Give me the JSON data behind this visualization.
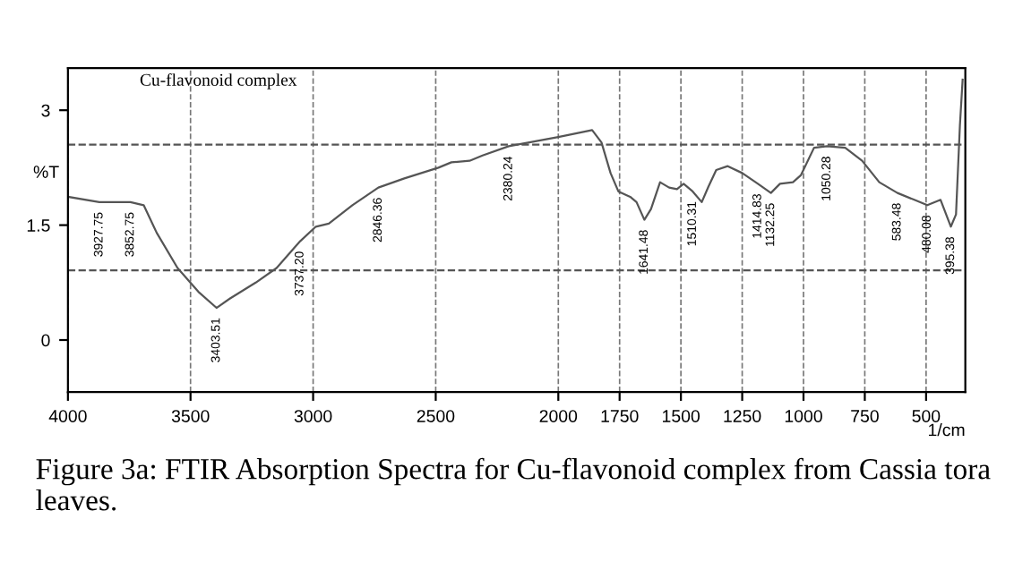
{
  "chart_data": {
    "type": "line",
    "title": "Cu-flavonoid complex",
    "xlabel": "1/cm",
    "ylabel": "%T",
    "x": [
      4000,
      3872,
      3745,
      3691,
      3638,
      3553,
      3468,
      3394,
      3340,
      3234,
      3149,
      3053,
      2989,
      2936,
      2840,
      2734,
      2628,
      2489,
      2436,
      2362,
      2309,
      2202,
      2000,
      1862,
      1824,
      1787,
      1755,
      1707,
      1681,
      1649,
      1622,
      1585,
      1548,
      1516,
      1489,
      1452,
      1415,
      1388,
      1356,
      1309,
      1250,
      1186,
      1133,
      1096,
      1043,
      1011,
      957,
      904,
      830,
      761,
      691,
      617,
      548,
      495,
      441,
      399,
      378,
      362,
      351
    ],
    "series": [
      {
        "color": "#555555",
        "values": [
          1.87,
          1.8,
          1.8,
          1.76,
          1.4,
          0.94,
          0.63,
          0.42,
          0.54,
          0.75,
          0.94,
          1.29,
          1.48,
          1.52,
          1.76,
          1.99,
          2.11,
          2.25,
          2.32,
          2.34,
          2.41,
          2.53,
          2.65,
          2.74,
          2.58,
          2.18,
          1.94,
          1.87,
          1.8,
          1.57,
          1.71,
          2.06,
          1.99,
          1.97,
          2.04,
          1.94,
          1.8,
          2.0,
          2.22,
          2.27,
          2.18,
          2.04,
          1.92,
          2.04,
          2.06,
          2.15,
          2.51,
          2.53,
          2.51,
          2.34,
          2.06,
          1.92,
          1.83,
          1.76,
          1.83,
          1.48,
          1.64,
          2.81,
          3.4
        ]
      }
    ],
    "xlim": [
      4000,
      340
    ],
    "ylim": [
      -0.68,
      3.55
    ],
    "xticks": [
      4000,
      3500,
      3000,
      2500,
      2000,
      1750,
      1500,
      1250,
      1000,
      750,
      500
    ],
    "yticks": [
      0,
      1.5,
      3
    ],
    "grid": "x",
    "line_style": "solid",
    "marker": "none",
    "ref_lines": [
      {
        "axis": "y",
        "value": 2.55,
        "line_style": "dashed",
        "color": "#555555"
      },
      {
        "axis": "y",
        "value": 0.91,
        "line_style": "dashed",
        "color": "#555555"
      }
    ],
    "annotations": [
      {
        "text": "3927.75",
        "x": 3872,
        "y": 1.8
      },
      {
        "text": "3852.75",
        "x": 3745,
        "y": 1.8
      },
      {
        "text": "3737.20",
        "x": 3053,
        "y": 1.29
      },
      {
        "text": "3403.51",
        "x": 3394,
        "y": 0.42
      },
      {
        "text": "2846.36",
        "x": 2734,
        "y": 1.99
      },
      {
        "text": "2380.24",
        "x": 2202,
        "y": 2.53
      },
      {
        "text": "1641.48",
        "x": 1649,
        "y": 1.57
      },
      {
        "text": "1510.31",
        "x": 1452,
        "y": 1.94
      },
      {
        "text": "1414.83",
        "x": 1186,
        "y": 2.04
      },
      {
        "text": "1132.25",
        "x": 1133,
        "y": 1.92
      },
      {
        "text": "1050.28",
        "x": 904,
        "y": 2.53
      },
      {
        "text": "583.48",
        "x": 617,
        "y": 1.92
      },
      {
        "text": "480.08",
        "x": 495,
        "y": 1.76
      },
      {
        "text": "395.38",
        "x": 399,
        "y": 1.48
      },
      "Figure 3a: FTIR Absorption Spectra for Cu-flavonoid complex from Cassia tora leaves."
    ]
  }
}
